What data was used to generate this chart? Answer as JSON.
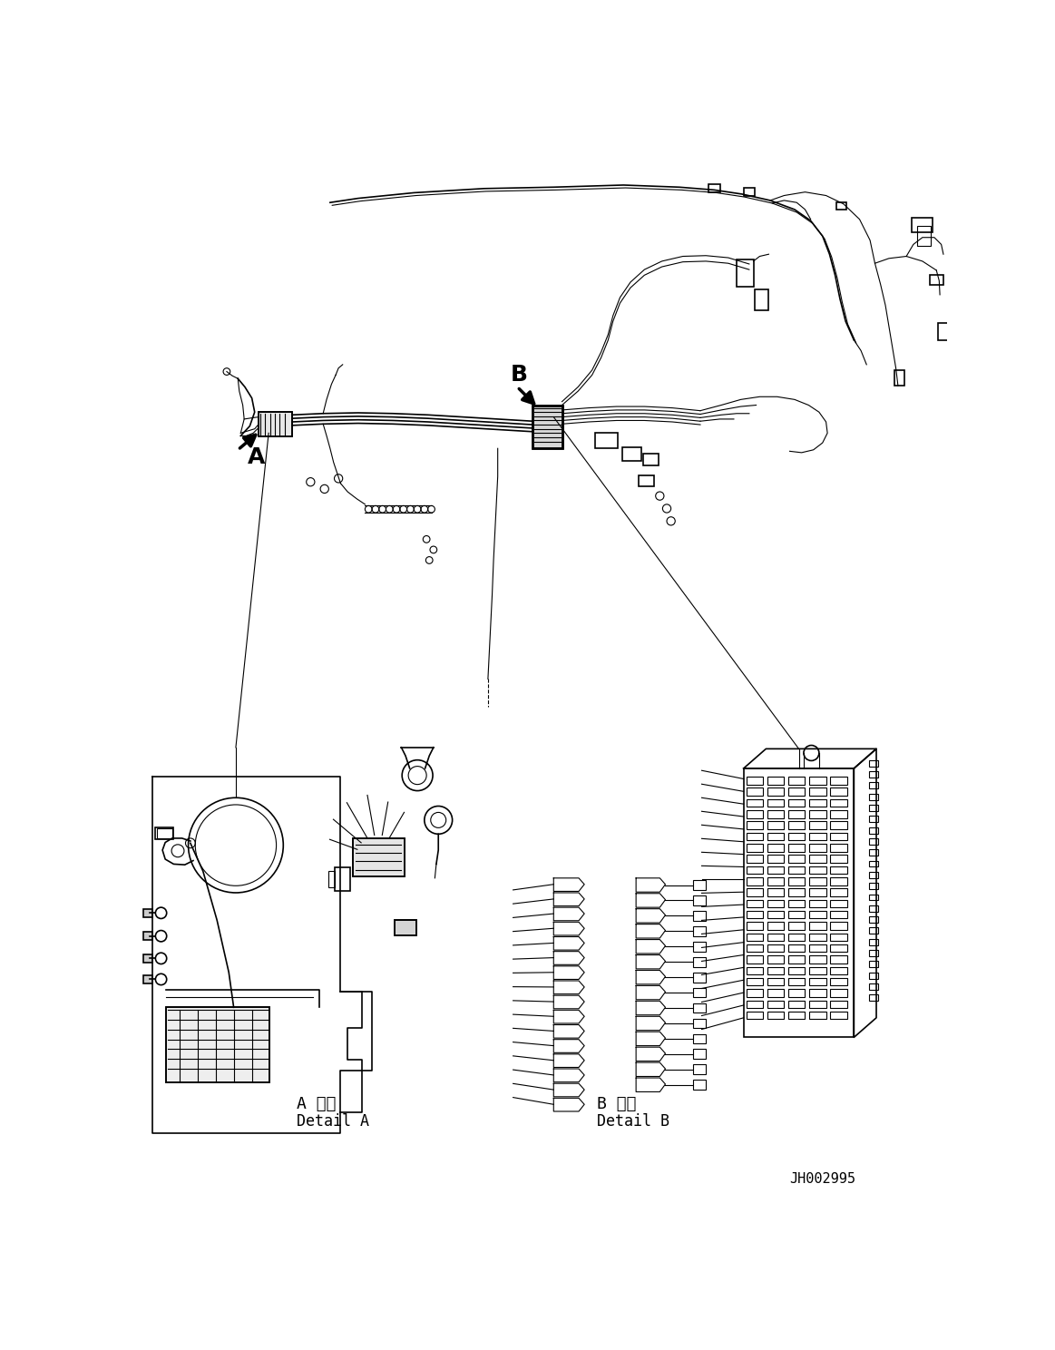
{
  "bg_color": "#ffffff",
  "line_color": "#000000",
  "fig_width": 11.63,
  "fig_height": 14.88,
  "dpi": 100,
  "label_A": "A",
  "label_B": "B",
  "detail_A_title": "A 詳細",
  "detail_A_sub": "Detail A",
  "detail_B_title": "B 詳細",
  "detail_B_sub": "Detail B",
  "part_number": "JH002995",
  "lw_thin": 0.8,
  "lw_medium": 1.2,
  "lw_thick": 1.8
}
